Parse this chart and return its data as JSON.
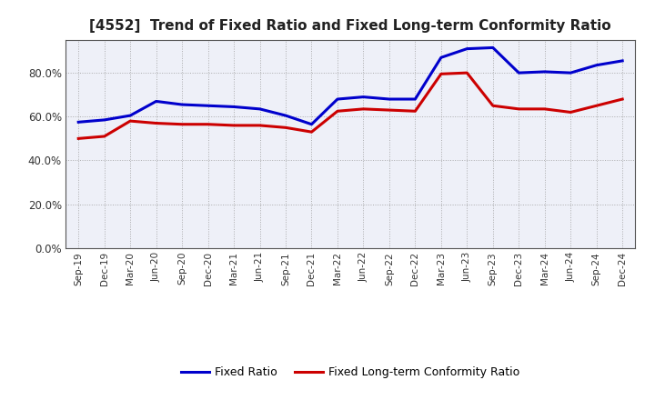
{
  "title": "[4552]  Trend of Fixed Ratio and Fixed Long-term Conformity Ratio",
  "x_labels": [
    "Sep-19",
    "Dec-19",
    "Mar-20",
    "Jun-20",
    "Sep-20",
    "Dec-20",
    "Mar-21",
    "Jun-21",
    "Sep-21",
    "Dec-21",
    "Mar-22",
    "Jun-22",
    "Sep-22",
    "Dec-22",
    "Mar-23",
    "Jun-23",
    "Sep-23",
    "Dec-23",
    "Mar-24",
    "Jun-24",
    "Sep-24",
    "Dec-24"
  ],
  "fixed_ratio": [
    57.5,
    58.5,
    60.5,
    67.0,
    65.5,
    65.0,
    64.5,
    63.5,
    60.5,
    56.5,
    68.0,
    69.0,
    68.0,
    68.0,
    87.0,
    91.0,
    91.5,
    80.0,
    80.5,
    80.0,
    83.5,
    85.5
  ],
  "fixed_lt_ratio": [
    50.0,
    51.0,
    58.0,
    57.0,
    56.5,
    56.5,
    56.0,
    56.0,
    55.0,
    53.0,
    62.5,
    63.5,
    63.0,
    62.5,
    79.5,
    80.0,
    65.0,
    63.5,
    63.5,
    62.0,
    65.0,
    68.0
  ],
  "fixed_ratio_color": "#0000cc",
  "fixed_lt_ratio_color": "#cc0000",
  "ylim": [
    0,
    95
  ],
  "yticks": [
    0,
    20,
    40,
    60,
    80
  ],
  "ytick_labels": [
    "0.0%",
    "20.0%",
    "40.0%",
    "60.0%",
    "80.0%"
  ],
  "background_color": "#ffffff",
  "plot_bg_color": "#eef0f8",
  "grid_color": "#999999",
  "spine_color": "#555555",
  "legend_fixed_ratio": "Fixed Ratio",
  "legend_fixed_lt_ratio": "Fixed Long-term Conformity Ratio",
  "line_width": 2.2
}
